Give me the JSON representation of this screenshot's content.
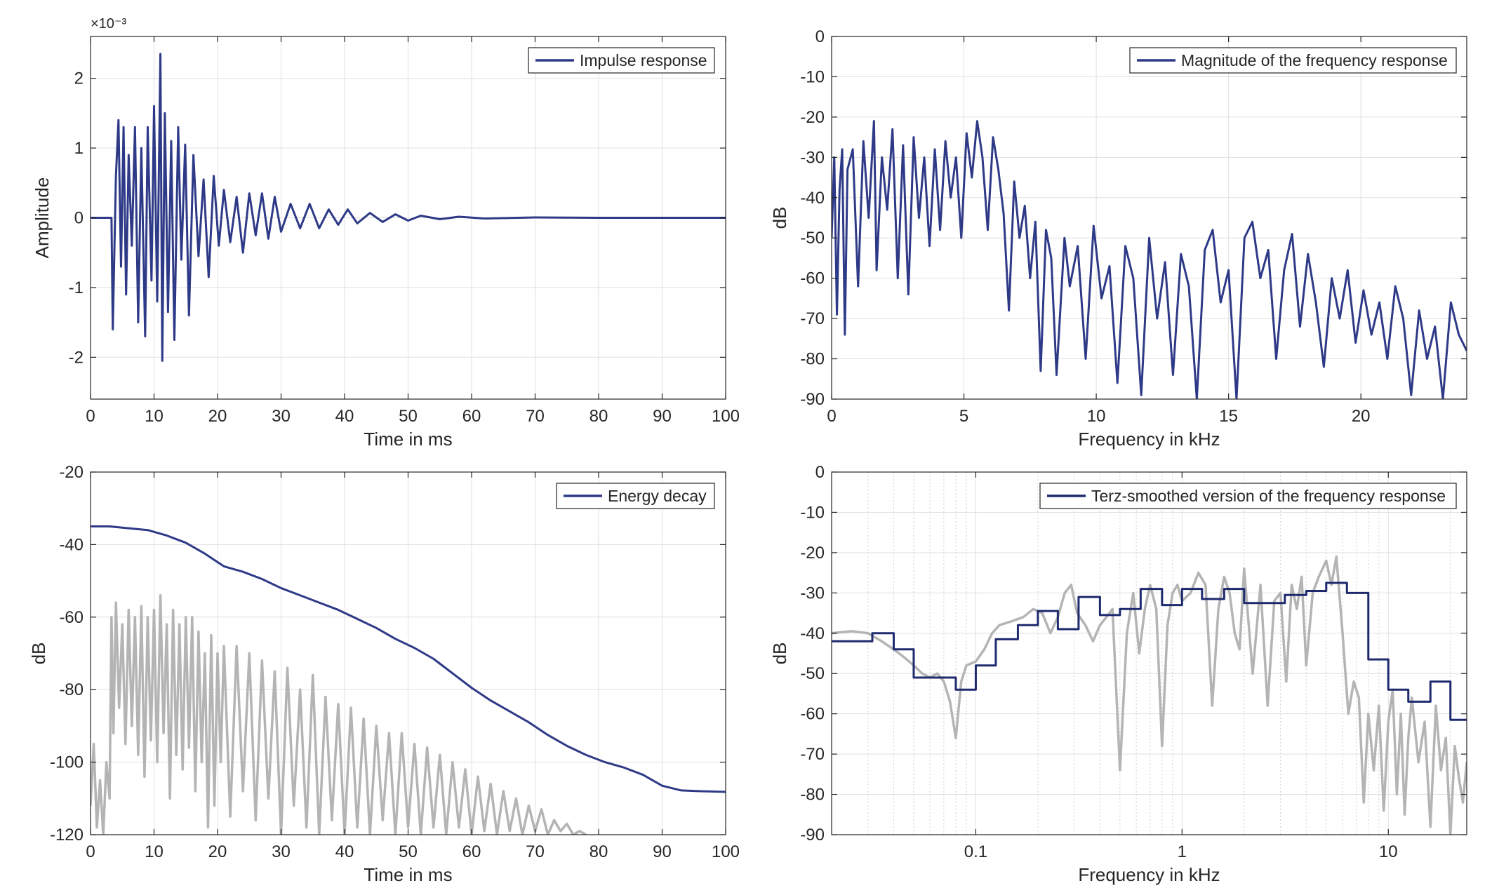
{
  "figure": {
    "background": "#ffffff",
    "axis_color": "#262626",
    "grid_color": "#e0e0e0",
    "series_color": "#2e3a87",
    "gray_color": "#b4b4b4"
  },
  "chart_data": [
    {
      "id": "impulse",
      "type": "line",
      "xlabel": "Time in ms",
      "ylabel": "Amplitude",
      "exponent_label": "×10⁻³",
      "xlim": [
        0,
        100
      ],
      "ylim": [
        -2.6,
        2.6
      ],
      "xticks": [
        0,
        10,
        20,
        30,
        40,
        50,
        60,
        70,
        80,
        90,
        100
      ],
      "yticks": [
        -2,
        -1,
        0,
        1,
        2
      ],
      "grid": true,
      "legend": "top-right",
      "series": [
        {
          "name": "Impulse response",
          "color": "#2e3a87",
          "x": [
            0,
            3.3,
            3.5,
            4.0,
            4.4,
            4.8,
            5.2,
            5.6,
            6.0,
            6.5,
            7.0,
            7.5,
            8.0,
            8.6,
            9.0,
            9.6,
            10.0,
            10.5,
            11.0,
            11.3,
            11.7,
            12.2,
            12.7,
            13.2,
            13.8,
            14.3,
            14.9,
            15.5,
            16.2,
            17.0,
            17.8,
            18.6,
            19.4,
            20.2,
            21.0,
            22.0,
            23.0,
            24.0,
            25.0,
            26.0,
            27.0,
            28.0,
            29.0,
            30.0,
            31.5,
            33.0,
            34.5,
            36.0,
            37.5,
            39.0,
            40.5,
            42.0,
            44.0,
            46.0,
            48.0,
            50.0,
            52.0,
            55.0,
            58.0,
            62.0,
            70.0,
            80.0,
            90.0,
            100.0
          ],
          "y": [
            0,
            0,
            -1.6,
            0.6,
            1.4,
            -0.7,
            1.3,
            -1.1,
            0.9,
            -0.4,
            1.3,
            -1.5,
            1.0,
            -1.7,
            1.3,
            -0.9,
            1.6,
            -1.2,
            2.35,
            -2.05,
            1.5,
            -1.35,
            1.1,
            -1.75,
            1.3,
            -0.6,
            1.05,
            -1.4,
            0.9,
            -0.55,
            0.55,
            -0.85,
            0.6,
            -0.4,
            0.4,
            -0.35,
            0.3,
            -0.5,
            0.35,
            -0.25,
            0.35,
            -0.3,
            0.3,
            -0.2,
            0.2,
            -0.15,
            0.2,
            -0.15,
            0.12,
            -0.1,
            0.12,
            -0.08,
            0.07,
            -0.06,
            0.05,
            -0.04,
            0.03,
            -0.02,
            0.015,
            -0.01,
            0.005,
            0,
            0,
            0
          ]
        }
      ]
    },
    {
      "id": "magnitude",
      "type": "line",
      "xlabel": "Frequency in kHz",
      "ylabel": "dB",
      "xlim": [
        0,
        24
      ],
      "ylim": [
        -90,
        0
      ],
      "xticks": [
        0,
        5,
        10,
        15,
        20
      ],
      "yticks": [
        0,
        -10,
        -20,
        -30,
        -40,
        -50,
        -60,
        -70,
        -80,
        -90
      ],
      "grid": true,
      "legend": "top-right",
      "series": [
        {
          "name": "Magnitude of the frequency response",
          "color": "#2e3a87",
          "x": [
            0.0,
            0.1,
            0.2,
            0.3,
            0.4,
            0.5,
            0.6,
            0.8,
            1.0,
            1.2,
            1.4,
            1.6,
            1.7,
            1.9,
            2.1,
            2.3,
            2.5,
            2.7,
            2.9,
            3.1,
            3.3,
            3.5,
            3.7,
            3.9,
            4.1,
            4.3,
            4.5,
            4.7,
            4.9,
            5.1,
            5.3,
            5.5,
            5.7,
            5.9,
            6.1,
            6.3,
            6.5,
            6.7,
            6.9,
            7.1,
            7.3,
            7.5,
            7.7,
            7.9,
            8.1,
            8.3,
            8.5,
            8.8,
            9.0,
            9.3,
            9.6,
            9.9,
            10.2,
            10.5,
            10.8,
            11.1,
            11.4,
            11.7,
            12.0,
            12.3,
            12.6,
            12.9,
            13.2,
            13.5,
            13.8,
            14.1,
            14.4,
            14.7,
            15.0,
            15.3,
            15.6,
            15.9,
            16.2,
            16.5,
            16.8,
            17.1,
            17.4,
            17.7,
            18.0,
            18.3,
            18.6,
            18.9,
            19.2,
            19.5,
            19.8,
            20.1,
            20.4,
            20.7,
            21.0,
            21.3,
            21.6,
            21.9,
            22.2,
            22.5,
            22.8,
            23.1,
            23.4,
            23.7,
            24.0
          ],
          "y": [
            -50,
            -30,
            -69,
            -38,
            -28,
            -74,
            -33,
            -28,
            -62,
            -26,
            -45,
            -21,
            -58,
            -30,
            -43,
            -23,
            -60,
            -27,
            -64,
            -25,
            -45,
            -30,
            -52,
            -28,
            -48,
            -26,
            -40,
            -30,
            -50,
            -24,
            -35,
            -21,
            -30,
            -48,
            -25,
            -33,
            -44,
            -68,
            -36,
            -50,
            -42,
            -60,
            -46,
            -83,
            -48,
            -55,
            -84,
            -50,
            -62,
            -52,
            -80,
            -47,
            -65,
            -57,
            -86,
            -52,
            -60,
            -89,
            -50,
            -70,
            -56,
            -84,
            -54,
            -62,
            -90,
            -53,
            -48,
            -66,
            -58,
            -90,
            -50,
            -46,
            -60,
            -53,
            -80,
            -58,
            -49,
            -72,
            -54,
            -66,
            -82,
            -60,
            -70,
            -58,
            -76,
            -63,
            -74,
            -66,
            -80,
            -62,
            -70,
            -89,
            -68,
            -80,
            -72,
            -90,
            -66,
            -74,
            -78
          ]
        }
      ]
    },
    {
      "id": "energy",
      "type": "line",
      "xlabel": "Time in ms",
      "ylabel": "dB",
      "xlim": [
        0,
        100
      ],
      "ylim": [
        -120,
        -20
      ],
      "xticks": [
        0,
        10,
        20,
        30,
        40,
        50,
        60,
        70,
        80,
        90,
        100
      ],
      "yticks": [
        -20,
        -40,
        -60,
        -80,
        -100,
        -120
      ],
      "grid": true,
      "legend": "top-right",
      "series": [
        {
          "name": "Energy decay",
          "color": "#2e3a87",
          "x": [
            0,
            3,
            6,
            9,
            12,
            15,
            18,
            21,
            24,
            27,
            30,
            33,
            36,
            39,
            42,
            45,
            48,
            51,
            54,
            57,
            60,
            63,
            66,
            69,
            72,
            75,
            78,
            81,
            84,
            87,
            90,
            93,
            96,
            100
          ],
          "y": [
            -35,
            -35,
            -35.5,
            -36,
            -37.5,
            -39.5,
            -42.5,
            -46,
            -47.5,
            -49.5,
            -52,
            -54,
            -56,
            -58,
            -60.5,
            -63,
            -66,
            -68.5,
            -71.5,
            -75.5,
            -79.5,
            -83,
            -86,
            -89,
            -92.5,
            -95.5,
            -98,
            -100,
            -101.5,
            -103.5,
            -106.5,
            -107.8,
            -108,
            -108.2
          ]
        },
        {
          "color": "#b4b4b4",
          "x": [
            0,
            0.5,
            1.0,
            1.5,
            2.0,
            2.5,
            3.0,
            3.3,
            3.6,
            4.0,
            4.5,
            5.0,
            5.5,
            6.0,
            6.5,
            7.0,
            7.5,
            8.0,
            8.5,
            9.0,
            9.5,
            10.0,
            10.5,
            11.0,
            11.5,
            12.0,
            12.5,
            13.0,
            13.5,
            14.0,
            14.5,
            15.0,
            15.5,
            16.0,
            16.5,
            17.0,
            17.5,
            18.0,
            18.5,
            19.0,
            19.5,
            20.0,
            20.5,
            21.0,
            22.0,
            23.0,
            24.0,
            25.0,
            26.0,
            27.0,
            28.0,
            29.0,
            30.0,
            31.0,
            32.0,
            33.0,
            34.0,
            35.0,
            36.0,
            37.0,
            38.0,
            39.0,
            40.0,
            41.0,
            42.0,
            43.0,
            44.0,
            45.0,
            46.0,
            47.0,
            48.0,
            49.0,
            50.0,
            51.0,
            52.0,
            53.0,
            54.0,
            55.0,
            56.0,
            57.0,
            58.0,
            59.0,
            60.0,
            61.0,
            62.0,
            63.0,
            64.0,
            65.0,
            66.0,
            67.0,
            68.0,
            69.0,
            70.0,
            71.0,
            72.0,
            73.0,
            74.0,
            75.0,
            76.0,
            77.0,
            78.0
          ],
          "y": [
            -112,
            -95,
            -118,
            -105,
            -120,
            -100,
            -110,
            -60,
            -92,
            -56,
            -85,
            -62,
            -95,
            -58,
            -90,
            -60,
            -98,
            -57,
            -104,
            -60,
            -94,
            -58,
            -100,
            -54,
            -92,
            -62,
            -110,
            -58,
            -98,
            -62,
            -102,
            -60,
            -96,
            -60,
            -108,
            -64,
            -100,
            -70,
            -118,
            -65,
            -112,
            -70,
            -100,
            -68,
            -115,
            -68,
            -108,
            -70,
            -116,
            -72,
            -110,
            -75,
            -120,
            -74,
            -112,
            -80,
            -118,
            -76,
            -120,
            -82,
            -116,
            -84,
            -120,
            -85,
            -118,
            -88,
            -120,
            -90,
            -116,
            -92,
            -120,
            -92,
            -118,
            -95,
            -120,
            -96,
            -118,
            -98,
            -120,
            -100,
            -118,
            -102,
            -120,
            -104,
            -119,
            -106,
            -120,
            -108,
            -119,
            -110,
            -120,
            -112,
            -119,
            -113,
            -120,
            -116,
            -119,
            -117,
            -120,
            -119,
            -120
          ]
        }
      ]
    },
    {
      "id": "terz",
      "type": "line",
      "xlabel": "Frequency in kHz",
      "ylabel": "dB",
      "xscale": "log",
      "xlim": [
        0.02,
        24
      ],
      "ylim": [
        -90,
        0
      ],
      "xticks": [
        0.1,
        1,
        10
      ],
      "xticklabels": [
        "0.1",
        "1",
        "10"
      ],
      "yticks": [
        0,
        -10,
        -20,
        -30,
        -40,
        -50,
        -60,
        -70,
        -80,
        -90
      ],
      "grid": true,
      "legend": "top-right",
      "series": [
        {
          "name": "Terz-smoothed version of the frequency response",
          "color": "#1f2a6e",
          "x": [
            0.02,
            0.0315,
            0.0315,
            0.04,
            0.04,
            0.05,
            0.05,
            0.063,
            0.063,
            0.08,
            0.08,
            0.1,
            0.1,
            0.125,
            0.125,
            0.16,
            0.16,
            0.2,
            0.2,
            0.25,
            0.25,
            0.315,
            0.315,
            0.4,
            0.4,
            0.5,
            0.5,
            0.63,
            0.63,
            0.8,
            0.8,
            1.0,
            1.0,
            1.25,
            1.25,
            1.6,
            1.6,
            2.0,
            2.0,
            2.5,
            2.5,
            3.15,
            3.15,
            4.0,
            4.0,
            5.0,
            5.0,
            6.3,
            6.3,
            8.0,
            8.0,
            10.0,
            10.0,
            12.5,
            12.5,
            16.0,
            16.0,
            20.0,
            20.0,
            24.0
          ],
          "y": [
            -42,
            -42,
            -40,
            -40,
            -44,
            -44,
            -51,
            -51,
            -51,
            -51,
            -54,
            -54,
            -48,
            -48,
            -41.5,
            -41.5,
            -38,
            -38,
            -34.5,
            -34.5,
            -39,
            -39,
            -31,
            -31,
            -35.5,
            -35.5,
            -34,
            -34,
            -29,
            -29,
            -33,
            -33,
            -29,
            -29,
            -31.5,
            -31.5,
            -29,
            -29,
            -32.5,
            -32.5,
            -32.5,
            -32.5,
            -30.5,
            -30.5,
            -29.5,
            -29.5,
            -27.5,
            -27.5,
            -30,
            -30,
            -46.5,
            -46.5,
            -54,
            -54,
            -57,
            -57,
            -52,
            -52,
            -61.5,
            -61.5
          ]
        },
        {
          "color": "#b4b4b4",
          "x": [
            0.02,
            0.025,
            0.03,
            0.035,
            0.04,
            0.045,
            0.05,
            0.055,
            0.06,
            0.065,
            0.07,
            0.075,
            0.08,
            0.085,
            0.09,
            0.1,
            0.11,
            0.12,
            0.13,
            0.15,
            0.17,
            0.19,
            0.21,
            0.23,
            0.25,
            0.27,
            0.29,
            0.31,
            0.34,
            0.37,
            0.4,
            0.43,
            0.46,
            0.5,
            0.54,
            0.58,
            0.62,
            0.66,
            0.7,
            0.75,
            0.8,
            0.85,
            0.9,
            0.95,
            1.0,
            1.1,
            1.2,
            1.3,
            1.4,
            1.5,
            1.6,
            1.7,
            1.8,
            1.9,
            2.0,
            2.2,
            2.4,
            2.6,
            2.8,
            3.0,
            3.2,
            3.4,
            3.6,
            3.8,
            4.0,
            4.3,
            4.6,
            5.0,
            5.3,
            5.6,
            6.0,
            6.4,
            6.8,
            7.2,
            7.6,
            8.0,
            8.5,
            9.0,
            9.5,
            10.0,
            10.5,
            11.0,
            11.5,
            12.0,
            12.5,
            13.0,
            14.0,
            15.0,
            16.0,
            17.0,
            18.0,
            19.0,
            20.0,
            21.0,
            22.0,
            23.0,
            24.0
          ],
          "y": [
            -40,
            -39.5,
            -40,
            -42,
            -44,
            -46,
            -48,
            -50,
            -51,
            -50,
            -52,
            -57,
            -66,
            -52,
            -48,
            -47,
            -44,
            -40,
            -38,
            -37,
            -36,
            -34,
            -35,
            -40,
            -36,
            -30,
            -28,
            -35,
            -38,
            -42,
            -38,
            -36,
            -34,
            -74,
            -40,
            -30,
            -45,
            -34,
            -28,
            -34,
            -68,
            -38,
            -30,
            -28,
            -32,
            -30,
            -25,
            -28,
            -58,
            -34,
            -26,
            -30,
            -40,
            -44,
            -24,
            -50,
            -28,
            -58,
            -32,
            -30,
            -52,
            -28,
            -34,
            -26,
            -48,
            -30,
            -26,
            -22,
            -28,
            -21,
            -40,
            -60,
            -52,
            -56,
            -82,
            -60,
            -74,
            -58,
            -84,
            -62,
            -54,
            -80,
            -60,
            -85,
            -66,
            -56,
            -72,
            -62,
            -88,
            -58,
            -74,
            -66,
            -90,
            -68,
            -76,
            -82,
            -72
          ]
        }
      ]
    }
  ]
}
